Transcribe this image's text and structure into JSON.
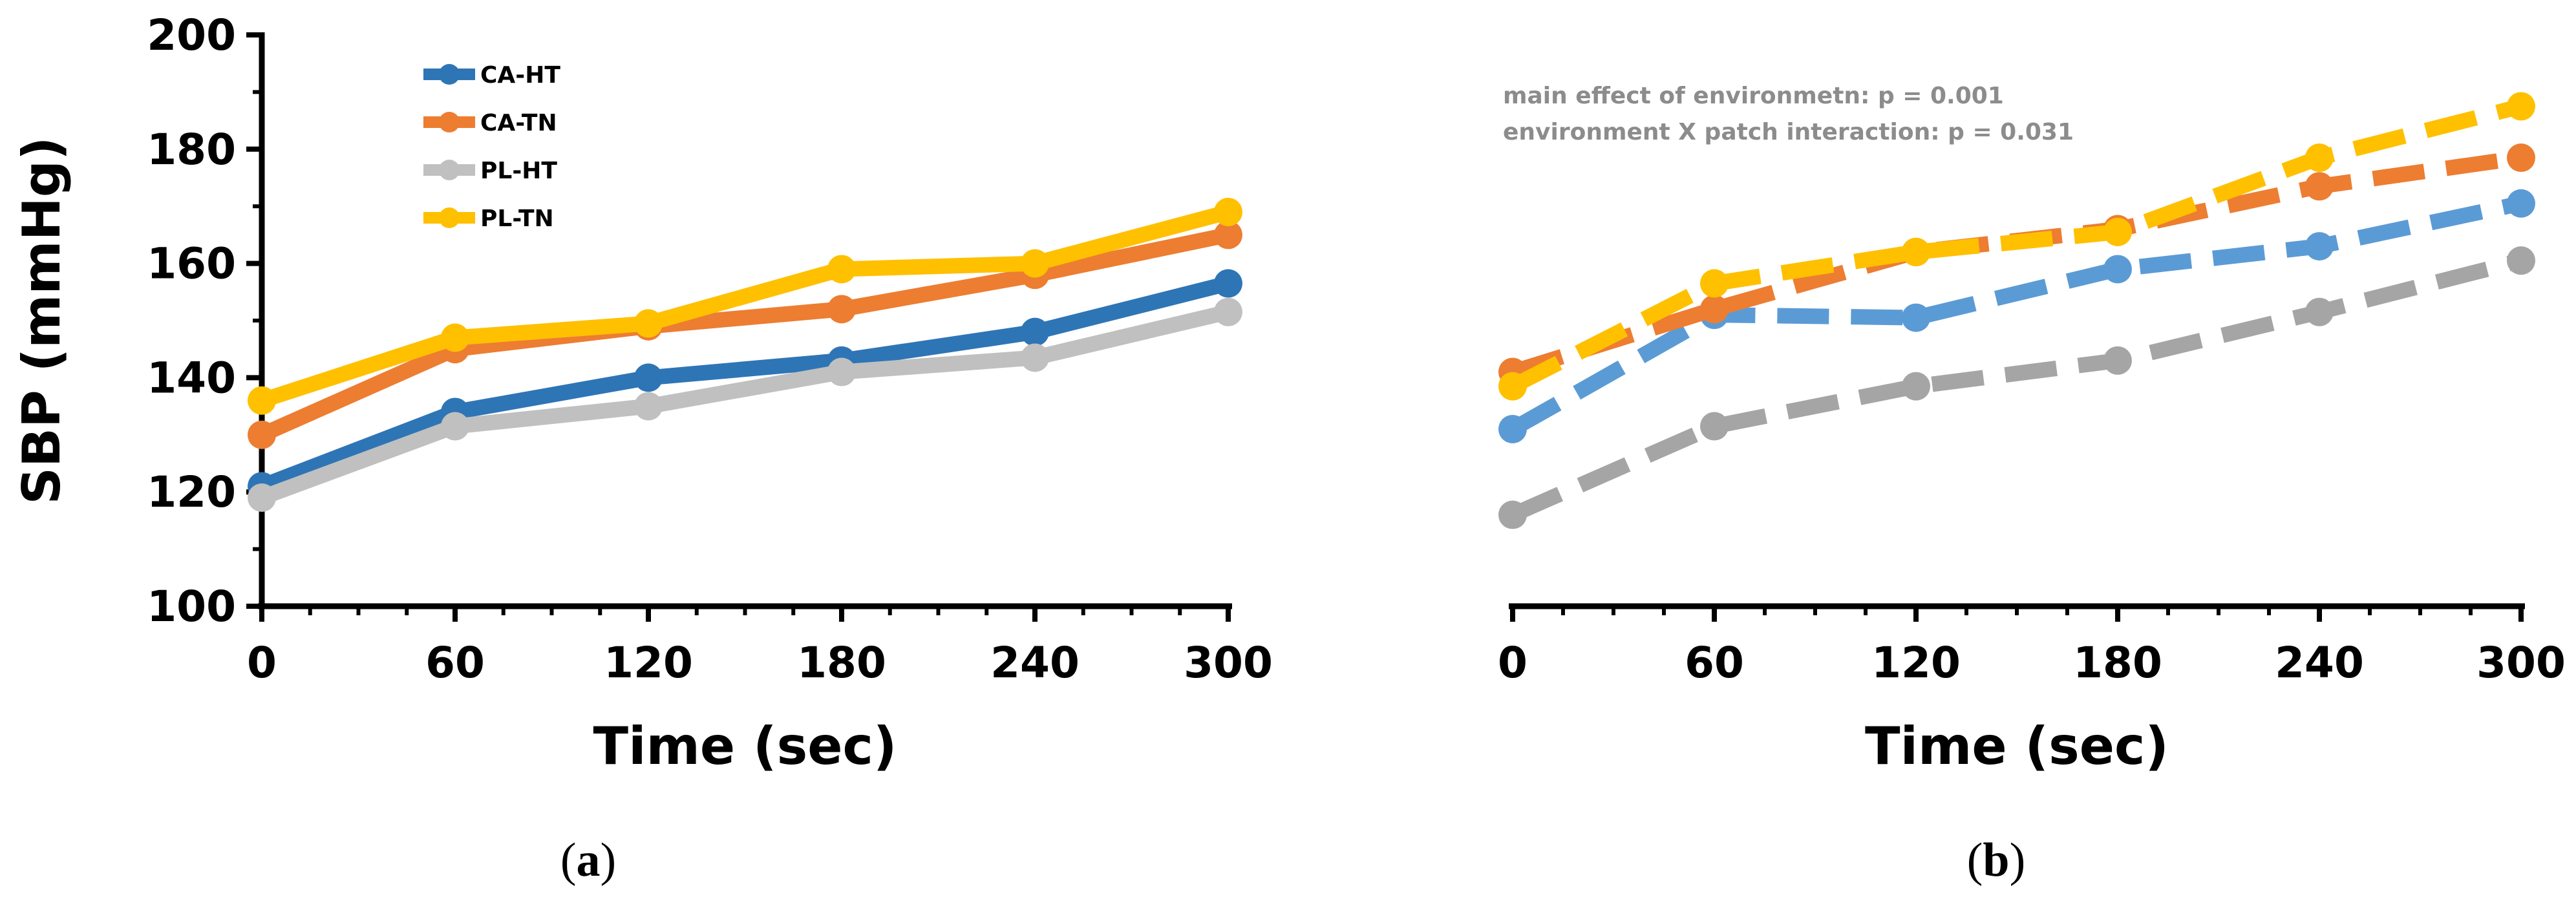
{
  "chart_data": [
    {
      "panel": "a",
      "type": "line",
      "line_style": "solid",
      "x": [
        0,
        60,
        120,
        180,
        240,
        300
      ],
      "xlabel": "Time (sec)",
      "ylabel": "SBP (mmHg)",
      "xlim": [
        0,
        300
      ],
      "ylim": [
        100,
        200
      ],
      "x_ticks": [
        "0",
        "60",
        "120",
        "180",
        "240",
        "300"
      ],
      "y_ticks": [
        "100",
        "120",
        "140",
        "160",
        "180",
        "200"
      ],
      "legend": "top-left",
      "caption": "a",
      "series": [
        {
          "name": "CA-HT",
          "color": "#2e75b6",
          "values": [
            121,
            134,
            140,
            143,
            148,
            156.5
          ]
        },
        {
          "name": "CA-TN",
          "color": "#ed7d31",
          "values": [
            130,
            145,
            149,
            152,
            158,
            165
          ]
        },
        {
          "name": "PL-HT",
          "color": "#c0c0c0",
          "values": [
            119,
            131.5,
            135,
            141,
            143.5,
            151.5
          ]
        },
        {
          "name": "PL-TN",
          "color": "#ffc000",
          "values": [
            136,
            147,
            149.5,
            159,
            160,
            169
          ]
        }
      ]
    },
    {
      "panel": "b",
      "type": "line",
      "line_style": "dashed",
      "x": [
        0,
        60,
        120,
        180,
        240,
        300
      ],
      "xlabel": "Time (sec)",
      "xlim": [
        0,
        300
      ],
      "ylim": [
        100,
        200
      ],
      "x_ticks": [
        "0",
        "60",
        "120",
        "180",
        "240",
        "300"
      ],
      "caption": "b",
      "annotations": [
        "main effect of environmetn: p = 0.001",
        "environment X patch interaction: p = 0.031"
      ],
      "series": [
        {
          "name": "CA-HT",
          "color": "#5b9bd5",
          "values": [
            131,
            151,
            150.5,
            159,
            163,
            170.5
          ]
        },
        {
          "name": "CA-TN",
          "color": "#ed7d31",
          "values": [
            141,
            152,
            162,
            166,
            173.5,
            178.5
          ]
        },
        {
          "name": "PL-HT",
          "color": "#a5a5a5",
          "values": [
            116,
            131.5,
            138.5,
            143,
            151.5,
            160.5
          ]
        },
        {
          "name": "PL-TN",
          "color": "#ffc000",
          "values": [
            138.5,
            156.5,
            162,
            165.5,
            178.5,
            187.5
          ]
        }
      ]
    }
  ]
}
